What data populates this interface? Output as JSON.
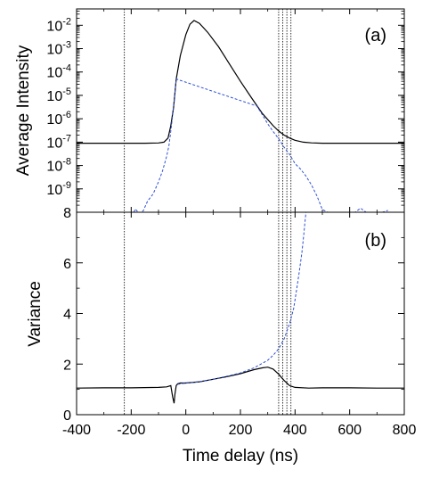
{
  "chart_data": [
    {
      "type": "line",
      "panel_label": "(a)",
      "title": "",
      "xlabel": "",
      "ylabel": "Average Intensity",
      "y_scale": "log",
      "xlim": [
        -400,
        800
      ],
      "ylim": [
        1e-10,
        0.05
      ],
      "y_tick_labels": [
        {
          "value": 0.01,
          "base": "10",
          "exp": "-2"
        },
        {
          "value": 0.001,
          "base": "10",
          "exp": "-3"
        },
        {
          "value": 0.0001,
          "base": "10",
          "exp": "-4"
        },
        {
          "value": 1e-05,
          "base": "10",
          "exp": "-5"
        },
        {
          "value": 1e-06,
          "base": "10",
          "exp": "-6"
        },
        {
          "value": 1e-07,
          "base": "10",
          "exp": "-7"
        },
        {
          "value": 1e-08,
          "base": "10",
          "exp": "-8"
        },
        {
          "value": 1e-09,
          "base": "10",
          "exp": "-9"
        }
      ],
      "vlines": [
        -225,
        340,
        355,
        370,
        385
      ],
      "series": [
        {
          "style": "solid",
          "color": "#000000",
          "x": [
            -400,
            -150,
            -100,
            -80,
            -65,
            -55,
            -45,
            -35,
            -20,
            0,
            15,
            30,
            50,
            80,
            120,
            160,
            200,
            240,
            280,
            320,
            340,
            360,
            380,
            400,
            430,
            460,
            500,
            600,
            700,
            800
          ],
          "y": [
            9e-08,
            9e-08,
            9.2e-08,
            1e-07,
            1.5e-07,
            5e-07,
            3e-06,
            5e-05,
            0.0005,
            0.004,
            0.011,
            0.016,
            0.012,
            0.005,
            0.0012,
            0.00022,
            4e-05,
            8e-06,
            1.7e-06,
            5e-07,
            3e-07,
            2e-07,
            1.5e-07,
            1.2e-07,
            1e-07,
            9.3e-08,
            9e-08,
            9e-08,
            9e-08,
            9e-08
          ]
        },
        {
          "style": "dashed",
          "color": "#2e4fd6",
          "x": [
            -190,
            -185,
            -175,
            -165,
            -155,
            -140,
            -120,
            -100,
            -85,
            -70,
            -62,
            -55,
            -45,
            -35,
            260,
            280,
            300,
            320,
            340,
            360,
            380,
            400,
            420,
            440,
            460,
            480,
            500,
            520,
            540,
            560,
            580,
            600,
            620,
            640,
            660,
            680,
            700,
            720,
            740
          ],
          "y": [
            1e-10,
            1.4e-10,
            1e-10,
            9e-11,
            1.2e-10,
            3e-10,
            6e-10,
            2e-09,
            6e-09,
            2.5e-08,
            7e-08,
            3e-07,
            3e-06,
            5e-05,
            3.5e-06,
            1.5e-06,
            6e-07,
            2.8e-07,
            1.4e-07,
            6e-08,
            3e-08,
            1.2e-08,
            7e-09,
            3.5e-09,
            1.5e-09,
            5e-10,
            1.3e-10,
            1e-10,
            1e-10,
            1e-10,
            1e-10,
            1e-10,
            1e-10,
            1.5e-10,
            1e-10,
            1e-10,
            1e-10,
            1e-10,
            1.2e-10
          ]
        }
      ]
    },
    {
      "type": "line",
      "panel_label": "(b)",
      "title": "",
      "xlabel": "Time delay (ns)",
      "ylabel": "Variance",
      "xlim": [
        -400,
        800
      ],
      "ylim": [
        0,
        8
      ],
      "x_ticks": [
        -400,
        -200,
        0,
        200,
        400,
        600,
        800
      ],
      "x_tick_labels": [
        "-400",
        "-200",
        "0",
        "200",
        "400",
        "600",
        "800"
      ],
      "y_ticks": [
        0,
        2,
        4,
        6,
        8
      ],
      "y_tick_labels": [
        "0",
        "2",
        "4",
        "6",
        "8"
      ],
      "vlines": [
        -225,
        340,
        355,
        370,
        385
      ],
      "series": [
        {
          "style": "solid",
          "color": "#000000",
          "x": [
            -400,
            -300,
            -200,
            -100,
            -70,
            -55,
            -48,
            -43,
            -40,
            -35,
            -30,
            -20,
            0,
            50,
            100,
            150,
            200,
            250,
            280,
            300,
            320,
            340,
            360,
            380,
            400,
            450,
            500,
            600,
            700,
            800
          ],
          "y": [
            1.05,
            1.06,
            1.06,
            1.08,
            1.1,
            1.15,
            0.7,
            0.45,
            0.8,
            1.15,
            1.22,
            1.25,
            1.25,
            1.3,
            1.4,
            1.5,
            1.62,
            1.78,
            1.85,
            1.88,
            1.8,
            1.6,
            1.35,
            1.15,
            1.08,
            1.05,
            1.06,
            1.06,
            1.05,
            1.05
          ]
        },
        {
          "style": "dashed",
          "color": "#2e4fd6",
          "x": [
            -30,
            0,
            50,
            100,
            150,
            200,
            250,
            300,
            320,
            340,
            360,
            380,
            395,
            405,
            415,
            425,
            432,
            436,
            440
          ],
          "y": [
            1.2,
            1.25,
            1.3,
            1.4,
            1.52,
            1.65,
            1.85,
            2.15,
            2.35,
            2.6,
            3.0,
            3.6,
            4.2,
            4.9,
            5.6,
            6.4,
            7.1,
            7.6,
            8.0
          ]
        }
      ]
    }
  ]
}
